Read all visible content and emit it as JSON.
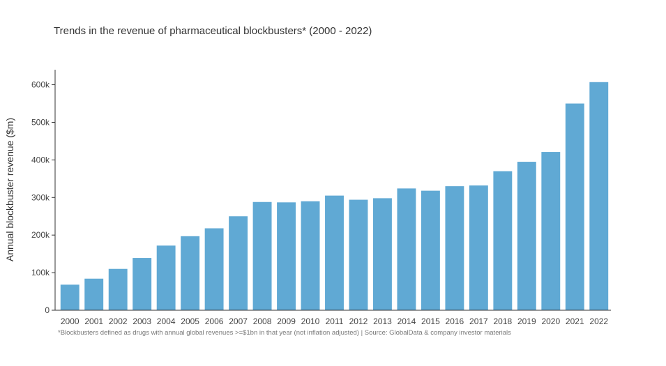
{
  "chart_data": {
    "type": "bar",
    "title": "Trends in the revenue of pharmaceutical blockbusters* (2000 - 2022)",
    "xlabel": "",
    "ylabel": "Annual blockbuster revenue ($m)",
    "footnote": "*Blockbusters defined as drugs with annual global revenues >=$1bn in that year (not inflation adjusted) | Source: GlobalData & company investor materials",
    "categories": [
      "2000",
      "2001",
      "2002",
      "2003",
      "2004",
      "2005",
      "2006",
      "2007",
      "2008",
      "2009",
      "2010",
      "2011",
      "2012",
      "2013",
      "2014",
      "2015",
      "2016",
      "2017",
      "2018",
      "2019",
      "2020",
      "2021",
      "2022"
    ],
    "values": [
      68000,
      84000,
      110000,
      139000,
      172000,
      197000,
      218000,
      250000,
      288000,
      287000,
      290000,
      305000,
      294000,
      298000,
      324000,
      318000,
      330000,
      332000,
      370000,
      395000,
      421000,
      550000,
      607000
    ],
    "ylim": [
      0,
      640000
    ],
    "yticks": [
      0,
      100000,
      200000,
      300000,
      400000,
      500000,
      600000
    ],
    "ytick_labels": [
      "0",
      "100k",
      "200k",
      "300k",
      "400k",
      "500k",
      "600k"
    ],
    "bar_color": "#60a9d4",
    "grid": false,
    "legend": "none"
  }
}
